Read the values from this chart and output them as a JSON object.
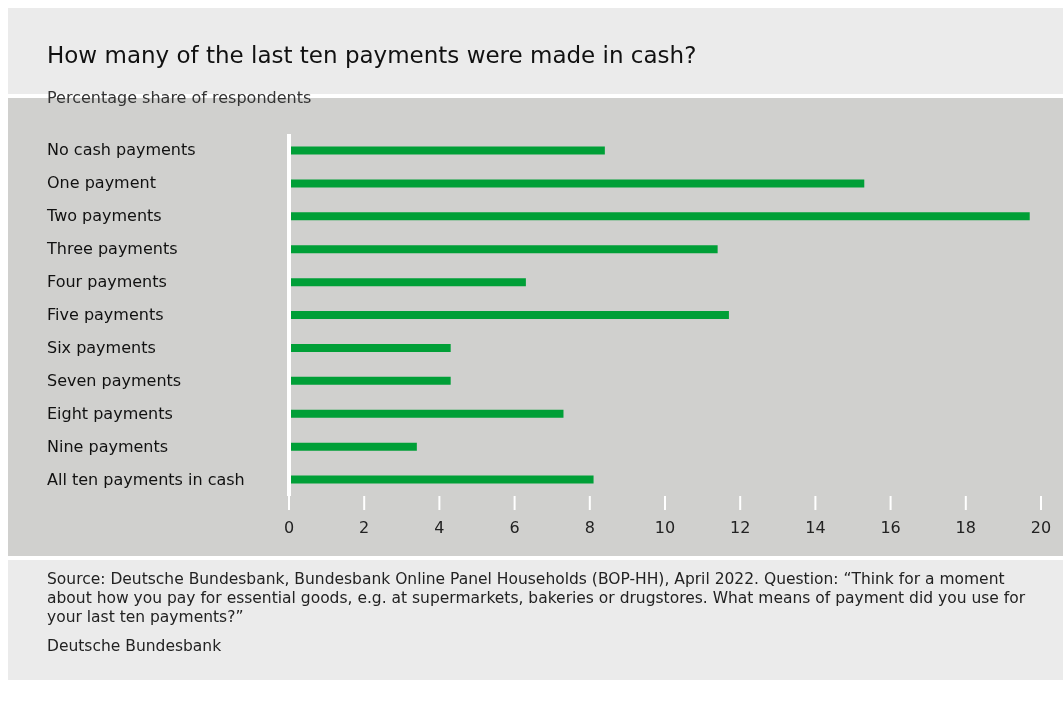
{
  "chart_data": {
    "type": "bar",
    "orientation": "horizontal",
    "title": "How many of the last ten payments were made in cash?",
    "subtitle": "Percentage share of respondents",
    "categories": [
      "No cash payments",
      "One payment",
      "Two payments",
      "Three payments",
      "Four payments",
      "Five payments",
      "Six payments",
      "Seven payments",
      "Eight payments",
      "Nine payments",
      "All ten payments in cash"
    ],
    "values": [
      8.4,
      15.3,
      19.7,
      11.4,
      6.3,
      11.7,
      4.3,
      4.3,
      7.3,
      3.4,
      8.1
    ],
    "color": "#009f37",
    "xlim": [
      0,
      20
    ],
    "xticks": [
      0,
      2,
      4,
      6,
      8,
      10,
      12,
      14,
      16,
      18,
      20
    ],
    "grid": false,
    "annotations": [
      "Source: Deutsche Bundesbank, Bundesbank Online Panel Households (BOP-HH), April 2022. Question: “Think for a moment about how you pay for essential goods, e.g. at supermarkets, bakeries or drugstores. What means of payment did you use for your last ten payments?”",
      "Deutsche Bundesbank"
    ]
  }
}
